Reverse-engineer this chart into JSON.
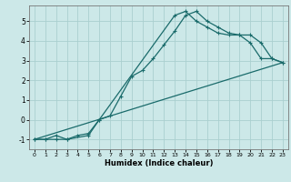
{
  "xlabel": "Humidex (Indice chaleur)",
  "bg_color": "#cce8e8",
  "line_color": "#1a6b6b",
  "grid_color": "#aacfcf",
  "ylim": [
    -1.5,
    5.8
  ],
  "xlim": [
    -0.5,
    23.5
  ],
  "line1_x": [
    0,
    1,
    2,
    3,
    4,
    5,
    6,
    7,
    8,
    9,
    10,
    11,
    12,
    13,
    14,
    15,
    16,
    17,
    18,
    19,
    20,
    21,
    22,
    23
  ],
  "line1_y": [
    -1,
    -1,
    -0.8,
    -1,
    -0.8,
    -0.7,
    0.0,
    0.2,
    1.2,
    2.2,
    2.5,
    3.1,
    3.8,
    4.5,
    5.3,
    5.5,
    5.0,
    4.7,
    4.4,
    4.3,
    4.3,
    3.9,
    3.1,
    2.9
  ],
  "line2_x": [
    0,
    1,
    2,
    3,
    5,
    6,
    13,
    14,
    15,
    16,
    17,
    18,
    19,
    20,
    21,
    22,
    23
  ],
  "line2_y": [
    -1,
    -1,
    -1,
    -1,
    -0.8,
    0.0,
    5.3,
    5.5,
    5.0,
    4.7,
    4.4,
    4.3,
    4.3,
    3.9,
    3.1,
    3.1,
    2.9
  ],
  "line3_x": [
    0,
    23
  ],
  "line3_y": [
    -1,
    2.9
  ],
  "yticks": [
    -1,
    0,
    1,
    2,
    3,
    4,
    5
  ],
  "xticks": [
    0,
    1,
    2,
    3,
    4,
    5,
    6,
    7,
    8,
    9,
    10,
    11,
    12,
    13,
    14,
    15,
    16,
    17,
    18,
    19,
    20,
    21,
    22,
    23
  ]
}
